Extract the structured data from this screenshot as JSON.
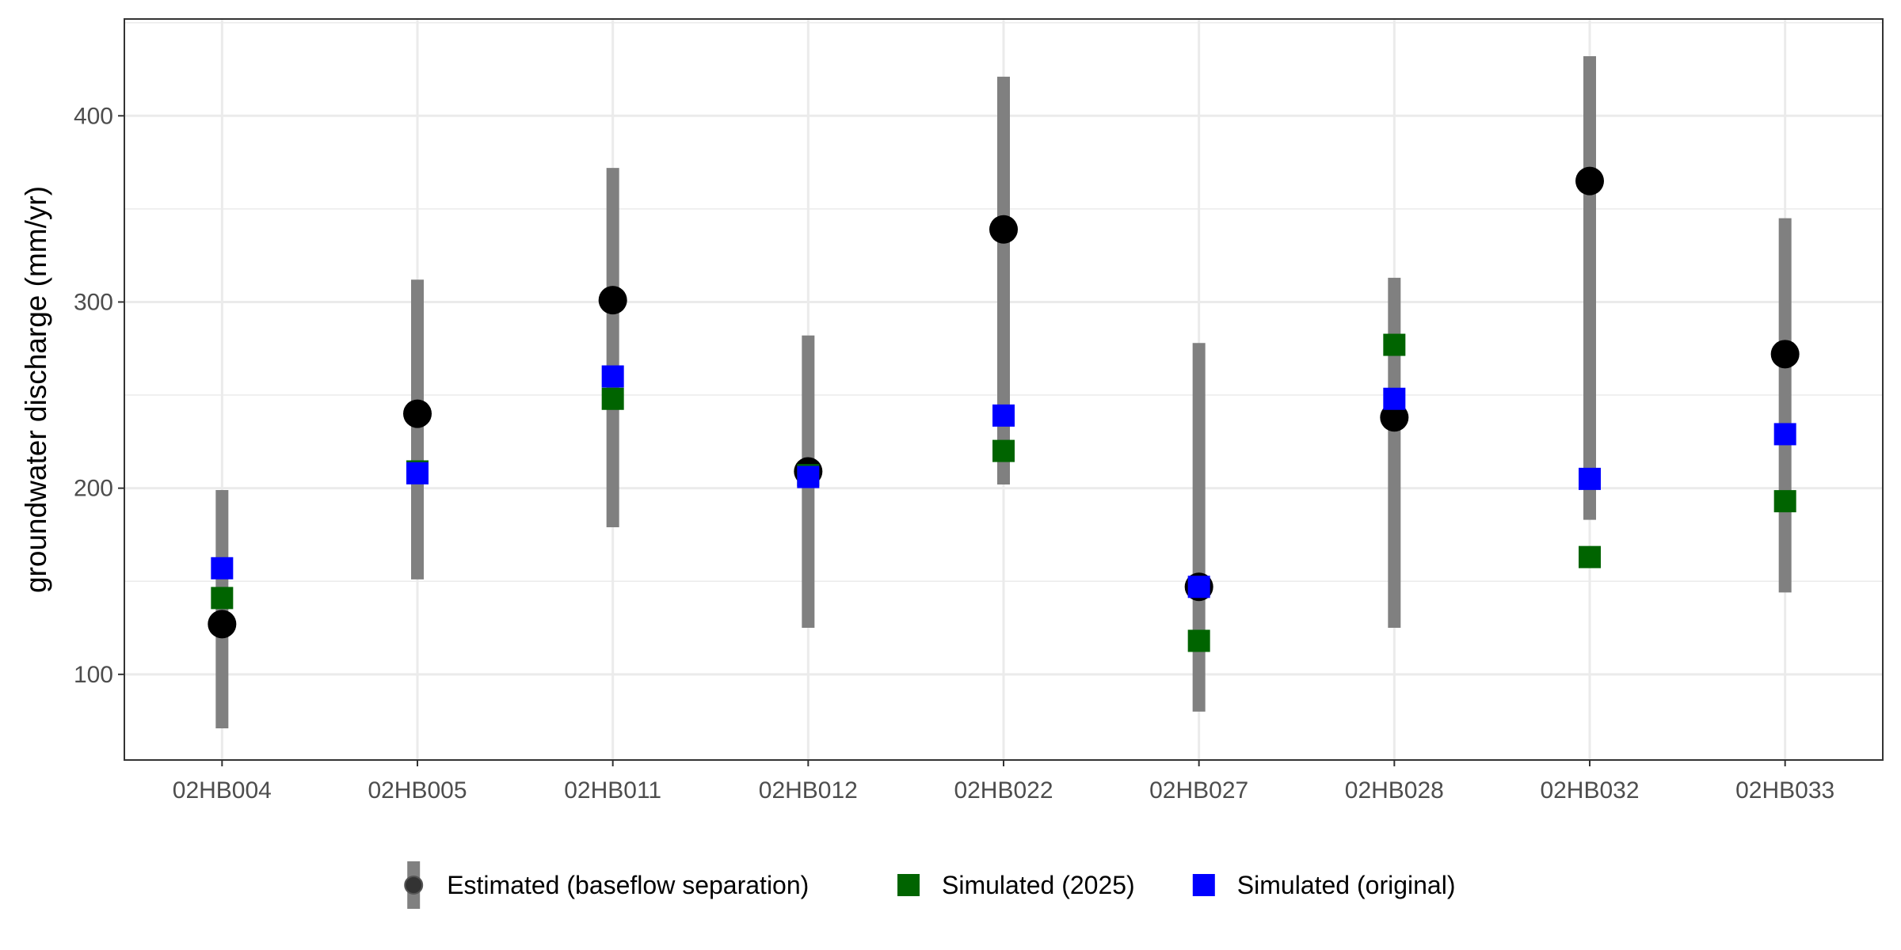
{
  "chart_data": {
    "type": "scatter",
    "title": "",
    "xlabel": "",
    "ylabel": "groundwater discharge (mm/yr)",
    "ylim": [
      54,
      452
    ],
    "y_ticks": [
      100,
      200,
      300,
      400
    ],
    "grid": true,
    "legend_position": "bottom",
    "categories": [
      "02HB004",
      "02HB005",
      "02HB011",
      "02HB012",
      "02HB022",
      "02HB027",
      "02HB028",
      "02HB032",
      "02HB033"
    ],
    "series": [
      {
        "name": "Estimated (baseflow separation)",
        "kind": "point-range",
        "color": "#000000",
        "range_color": "#808080",
        "values": [
          127,
          240,
          301,
          209,
          339,
          147,
          238,
          365,
          272
        ],
        "low": [
          71,
          151,
          179,
          125,
          202,
          80,
          125,
          183,
          144
        ],
        "high": [
          199,
          312,
          372,
          282,
          421,
          278,
          313,
          432,
          345
        ]
      },
      {
        "name": "Simulated (2025)",
        "kind": "square",
        "color": "#006400",
        "values": [
          141,
          209,
          248,
          207,
          220,
          118,
          277,
          163,
          193
        ]
      },
      {
        "name": "Simulated (original)",
        "kind": "square",
        "color": "#0000ff",
        "values": [
          157,
          208,
          260,
          206,
          239,
          147,
          248,
          205,
          229
        ]
      }
    ]
  }
}
